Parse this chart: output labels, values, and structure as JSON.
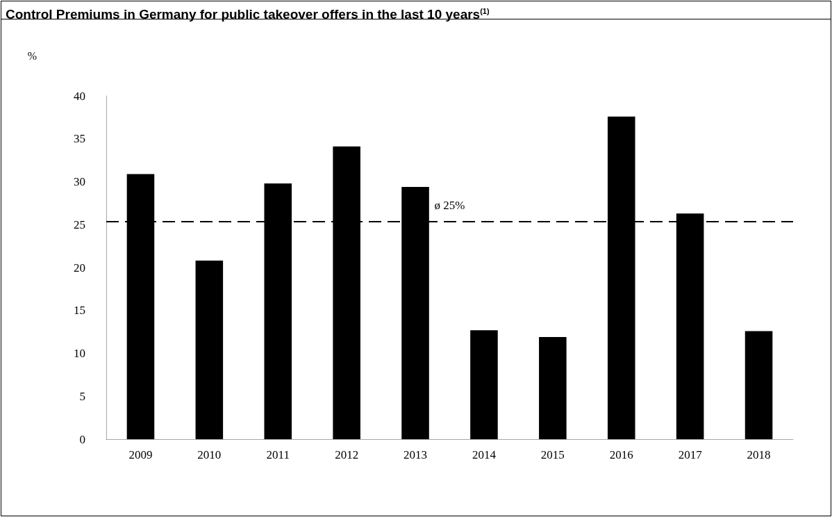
{
  "chart_data": {
    "type": "bar",
    "title": "Control Premiums in Germany for public takeover offers in the last 10 years$^{(1)}$",
    "ylabel": "%",
    "categories": [
      "2009",
      "2010",
      "2011",
      "2012",
      "2013",
      "2014",
      "2015",
      "2016",
      "2017",
      "2018"
    ],
    "values": [
      30.9,
      20.8,
      29.8,
      34.1,
      29.4,
      12.7,
      11.9,
      37.6,
      26.3,
      12.6
    ],
    "color": "#000000",
    "ylim": [
      0,
      40
    ],
    "yticks": [
      0,
      5,
      10,
      15,
      20,
      25,
      30,
      35,
      40
    ],
    "grid": false,
    "ref_lines": [
      {
        "axis": "y",
        "value": 25.4,
        "label": "ø 25%",
        "color": "#000000",
        "line_style": "dashed"
      }
    ]
  }
}
